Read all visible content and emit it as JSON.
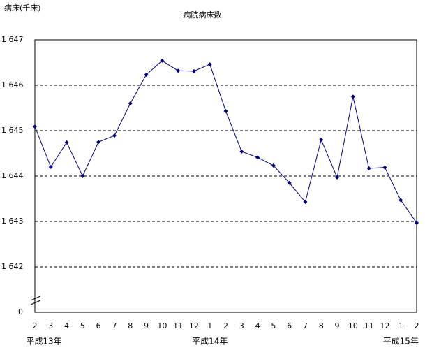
{
  "chart_data": {
    "type": "line",
    "title": "病院病床数",
    "y_label": "病床(千床)",
    "categories": [
      "2",
      "3",
      "4",
      "5",
      "6",
      "7",
      "8",
      "9",
      "10",
      "11",
      "12",
      "1",
      "2",
      "3",
      "4",
      "5",
      "6",
      "7",
      "8",
      "9",
      "10",
      "11",
      "12",
      "1",
      "2"
    ],
    "year_labels": [
      "平成13年",
      null,
      null,
      null,
      null,
      null,
      null,
      null,
      null,
      null,
      null,
      "平成14年",
      null,
      null,
      null,
      null,
      null,
      null,
      null,
      null,
      null,
      null,
      null,
      "平成15年",
      null
    ],
    "series": [
      {
        "color": "#000080",
        "values": [
          1645.09,
          1644.2,
          1644.74,
          1644.0,
          1644.75,
          1644.89,
          1645.6,
          1646.23,
          1646.54,
          1646.32,
          1646.31,
          1646.46,
          1645.43,
          1644.54,
          1644.41,
          1644.23,
          1643.85,
          1643.43,
          1644.8,
          1643.97,
          1645.75,
          1644.17,
          1644.19,
          1643.47,
          1642.97
        ]
      }
    ],
    "ylim": [
      1641,
      1647
    ],
    "yticks": [
      {
        "value": 1642,
        "label": "1 642"
      },
      {
        "value": 1643,
        "label": "1 643"
      },
      {
        "value": 1644,
        "label": "1 644"
      },
      {
        "value": 1645,
        "label": "1 645"
      },
      {
        "value": 1646,
        "label": "1 646"
      },
      {
        "value": 1647,
        "label": "1 647"
      }
    ],
    "y_break_label": "0",
    "grid": true
  }
}
